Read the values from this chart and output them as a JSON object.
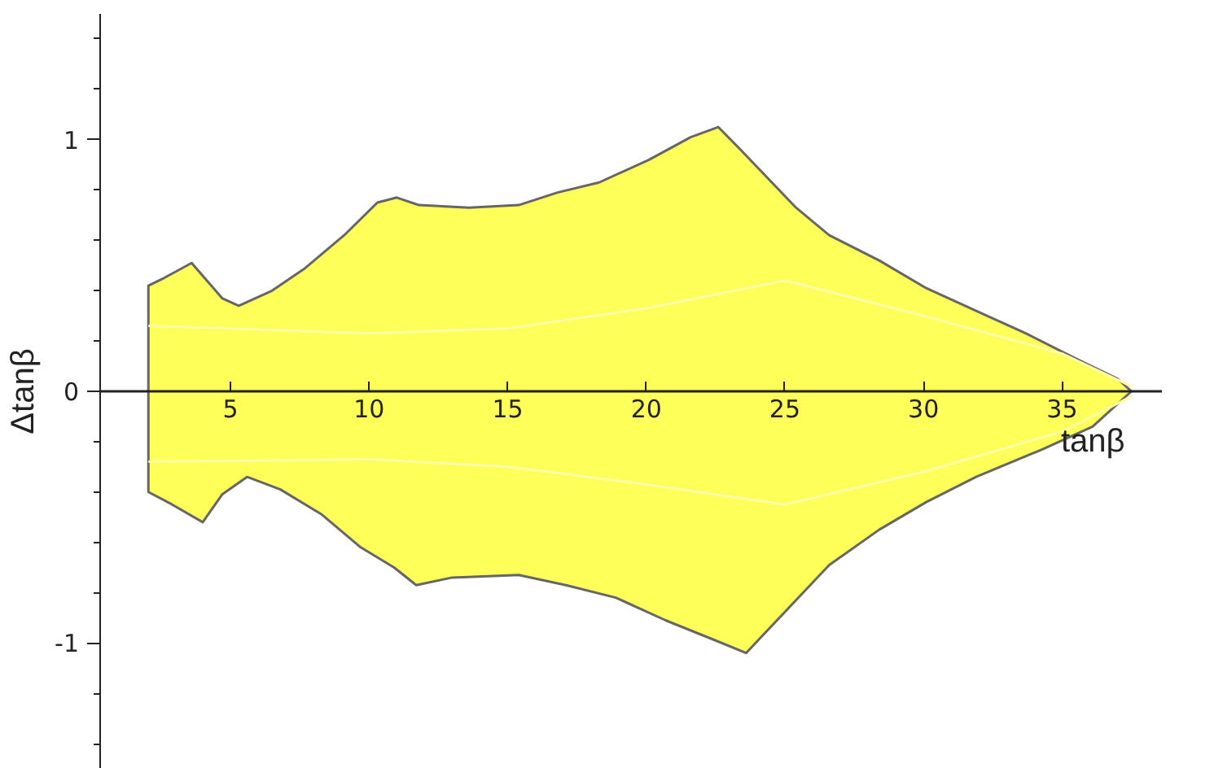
{
  "chart_data": {
    "type": "area",
    "xlabel": "tanβ",
    "ylabel": "Δtanβ",
    "xlim": [
      0.3,
      38.6
    ],
    "ylim": [
      -1.5,
      1.5
    ],
    "xticks": [
      5,
      10,
      15,
      20,
      25,
      30,
      35
    ],
    "yticks": [
      -1,
      0,
      1
    ],
    "grid": false,
    "series": [
      {
        "color": "#ffff5a",
        "x": [
          2.04,
          2.6,
          3.6,
          4.7,
          5.3,
          6.5,
          7.7,
          9.1,
          10.3,
          11.0,
          11.8,
          13.6,
          15.4,
          16.8,
          18.3,
          20.1,
          21.6,
          22.6,
          23.4,
          25.4,
          26.6,
          28.4,
          30.1,
          31.9,
          33.7,
          35.5,
          37.0,
          37.5
        ],
        "values": [
          0.42,
          0.45,
          0.51,
          0.37,
          0.34,
          0.4,
          0.49,
          0.62,
          0.75,
          0.77,
          0.74,
          0.73,
          0.74,
          0.79,
          0.83,
          0.92,
          1.01,
          1.05,
          0.96,
          0.73,
          0.62,
          0.52,
          0.41,
          0.32,
          0.23,
          0.13,
          0.05,
          0
        ]
      },
      {
        "color": "#ffff5a",
        "x": [
          2.04,
          2.9,
          4.0,
          4.7,
          5.6,
          6.8,
          8.3,
          9.7,
          10.9,
          11.7,
          13.0,
          15.4,
          17.1,
          18.9,
          20.7,
          22.5,
          23.6,
          24.2,
          25.4,
          26.6,
          28.4,
          30.1,
          31.9,
          34.3,
          36.1,
          37.5
        ],
        "values": [
          -0.4,
          -0.45,
          -0.52,
          -0.41,
          -0.34,
          -0.39,
          -0.49,
          -0.62,
          -0.7,
          -0.77,
          -0.74,
          -0.73,
          -0.77,
          -0.82,
          -0.91,
          -0.99,
          -1.04,
          -0.97,
          -0.83,
          -0.69,
          -0.55,
          -0.44,
          -0.34,
          -0.23,
          -0.14,
          0
        ]
      },
      {
        "type": "line",
        "color": "#ffffa8",
        "x": [
          2.04,
          10,
          15,
          20,
          25,
          30,
          35,
          37.5
        ],
        "values": [
          0.26,
          0.23,
          0.25,
          0.33,
          0.44,
          0.3,
          0.15,
          0.02
        ]
      },
      {
        "type": "line",
        "color": "#ffffa8",
        "x": [
          2.04,
          10,
          15,
          20,
          25,
          30,
          35,
          37.5
        ],
        "values": [
          -0.28,
          -0.27,
          -0.3,
          -0.37,
          -0.45,
          -0.32,
          -0.16,
          -0.02
        ]
      }
    ]
  }
}
